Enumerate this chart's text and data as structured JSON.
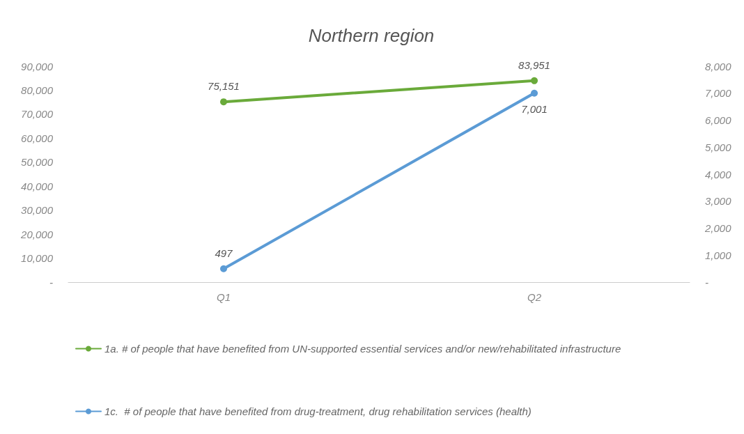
{
  "chart_data": {
    "type": "line",
    "title": "Northern region",
    "categories": [
      "Q1",
      "Q2"
    ],
    "series": [
      {
        "name": "1a. # of people that have benefited from UN-supported essential services and/or new/rehabilitated infrastructure",
        "color": "#6aaa3a",
        "values": [
          75151,
          83951
        ],
        "value_labels": [
          "75,151",
          "83,951"
        ]
      },
      {
        "name": "1c.  # of people that have benefited from drug-treatment, drug rehabilitation services (health)",
        "color": "#5b9bd5",
        "values": [
          497,
          7001
        ],
        "value_labels": [
          "497",
          "7,001"
        ],
        "axis": "y2"
      }
    ],
    "ylim": [
      0,
      90000
    ],
    "yticks": [
      {
        "value": 0,
        "label": "-"
      },
      {
        "value": 10000,
        "label": "10,000"
      },
      {
        "value": 20000,
        "label": "20,000"
      },
      {
        "value": 30000,
        "label": "30,000"
      },
      {
        "value": 40000,
        "label": "40,000"
      },
      {
        "value": 50000,
        "label": "50,000"
      },
      {
        "value": 60000,
        "label": "60,000"
      },
      {
        "value": 70000,
        "label": "70,000"
      },
      {
        "value": 80000,
        "label": "80,000"
      },
      {
        "value": 90000,
        "label": "90,000"
      }
    ],
    "y2lim": [
      0,
      8000
    ],
    "y2ticks": [
      {
        "value": 0,
        "label": "-"
      },
      {
        "value": 1000,
        "label": "1,000"
      },
      {
        "value": 2000,
        "label": "2,000"
      },
      {
        "value": 3000,
        "label": "3,000"
      },
      {
        "value": 4000,
        "label": "4,000"
      },
      {
        "value": 5000,
        "label": "5,000"
      },
      {
        "value": 6000,
        "label": "6,000"
      },
      {
        "value": 7000,
        "label": "7,000"
      },
      {
        "value": 8000,
        "label": "8,000"
      }
    ],
    "grid": false,
    "legend": "bottom",
    "marker": "circle",
    "line_style": "solid"
  }
}
